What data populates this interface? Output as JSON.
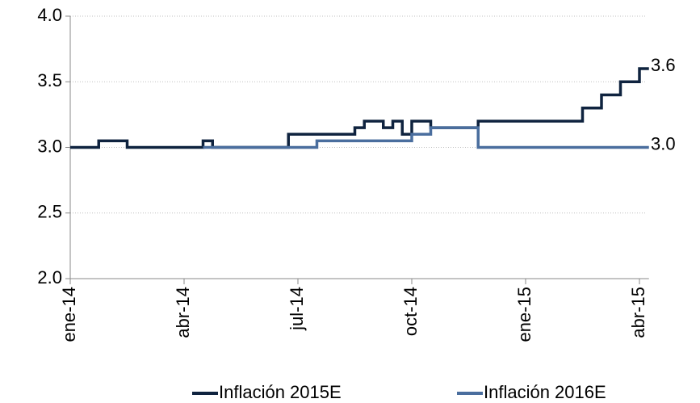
{
  "chart_data": {
    "type": "line",
    "step": "after",
    "categories": [
      "ene-14",
      null,
      null,
      null,
      null,
      null,
      null,
      null,
      null,
      null,
      null,
      null,
      "abr-14",
      null,
      null,
      null,
      null,
      null,
      null,
      null,
      null,
      null,
      null,
      null,
      "jul-14",
      null,
      null,
      null,
      null,
      null,
      null,
      null,
      null,
      null,
      null,
      null,
      "oct-14",
      null,
      null,
      null,
      null,
      null,
      null,
      null,
      null,
      null,
      null,
      null,
      "ene-15",
      null,
      null,
      null,
      null,
      null,
      null,
      null,
      null,
      null,
      null,
      null,
      "abr-15",
      null
    ],
    "series": [
      {
        "name": "Inflación 2015E",
        "color": "#0f233f",
        "values": [
          3,
          3,
          3,
          3.05,
          3.05,
          3.05,
          3,
          3,
          3,
          3,
          3,
          3,
          3,
          3,
          3.05,
          3,
          3,
          3,
          3,
          3,
          3,
          3,
          3,
          3.1,
          3.1,
          3.1,
          3.1,
          3.1,
          3.1,
          3.1,
          3.15,
          3.2,
          3.2,
          3.15,
          3.2,
          3.1,
          3.2,
          3.2,
          3.15,
          3.15,
          3.15,
          3.15,
          3.15,
          3.2,
          3.2,
          3.2,
          3.2,
          3.2,
          3.2,
          3.2,
          3.2,
          3.2,
          3.2,
          3.2,
          3.3,
          3.3,
          3.4,
          3.4,
          3.5,
          3.5,
          3.6,
          3.6
        ]
      },
      {
        "name": "Inflación 2016E",
        "color": "#4a6e9e",
        "values": [
          null,
          null,
          null,
          null,
          null,
          null,
          null,
          null,
          null,
          null,
          null,
          null,
          null,
          null,
          3,
          3,
          3,
          3,
          3,
          3,
          3,
          3,
          3,
          3,
          3,
          3,
          3.05,
          3.05,
          3.05,
          3.05,
          3.05,
          3.05,
          3.05,
          3.05,
          3.05,
          3.05,
          3.1,
          3.1,
          3.15,
          3.15,
          3.15,
          3.15,
          3.15,
          3,
          3,
          3,
          3,
          3,
          3,
          3,
          3,
          3,
          3,
          3,
          3,
          3,
          3,
          3,
          3,
          3,
          3,
          3
        ]
      }
    ],
    "ylim": [
      2,
      4
    ],
    "yticks": [
      {
        "value": 2,
        "label": "2.0"
      },
      {
        "value": 2.5,
        "label": "2.5"
      },
      {
        "value": 3,
        "label": "3.0"
      },
      {
        "value": 3.5,
        "label": "3.5"
      },
      {
        "value": 4,
        "label": "4.0"
      }
    ],
    "grid": true,
    "legend": "bottom",
    "annotations": [
      {
        "value": 3.6,
        "label": "3.6"
      },
      {
        "value": 3,
        "label": "3.0"
      }
    ]
  }
}
